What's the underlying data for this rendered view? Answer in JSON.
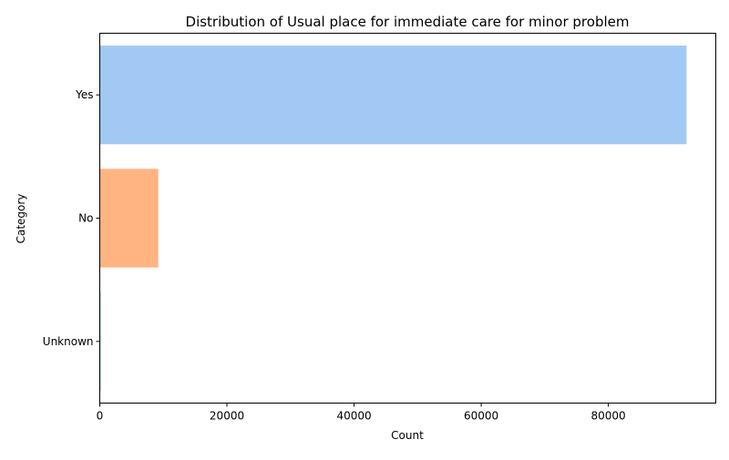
{
  "chart_data": {
    "type": "bar",
    "orientation": "horizontal",
    "title": "Distribution of Usual place for immediate care for minor problem",
    "xlabel": "Count",
    "ylabel": "Category",
    "categories": [
      "Yes",
      "No",
      "Unknown"
    ],
    "values": [
      92300,
      9200,
      150
    ],
    "colors": [
      "#a1c9f4",
      "#ffb482",
      "#8de5a1"
    ],
    "xlim": [
      0,
      96900
    ],
    "xticks": [
      0,
      20000,
      40000,
      60000,
      80000
    ],
    "xtick_labels": [
      "0",
      "20000",
      "40000",
      "60000",
      "80000"
    ],
    "grid": false,
    "legend": "none"
  }
}
